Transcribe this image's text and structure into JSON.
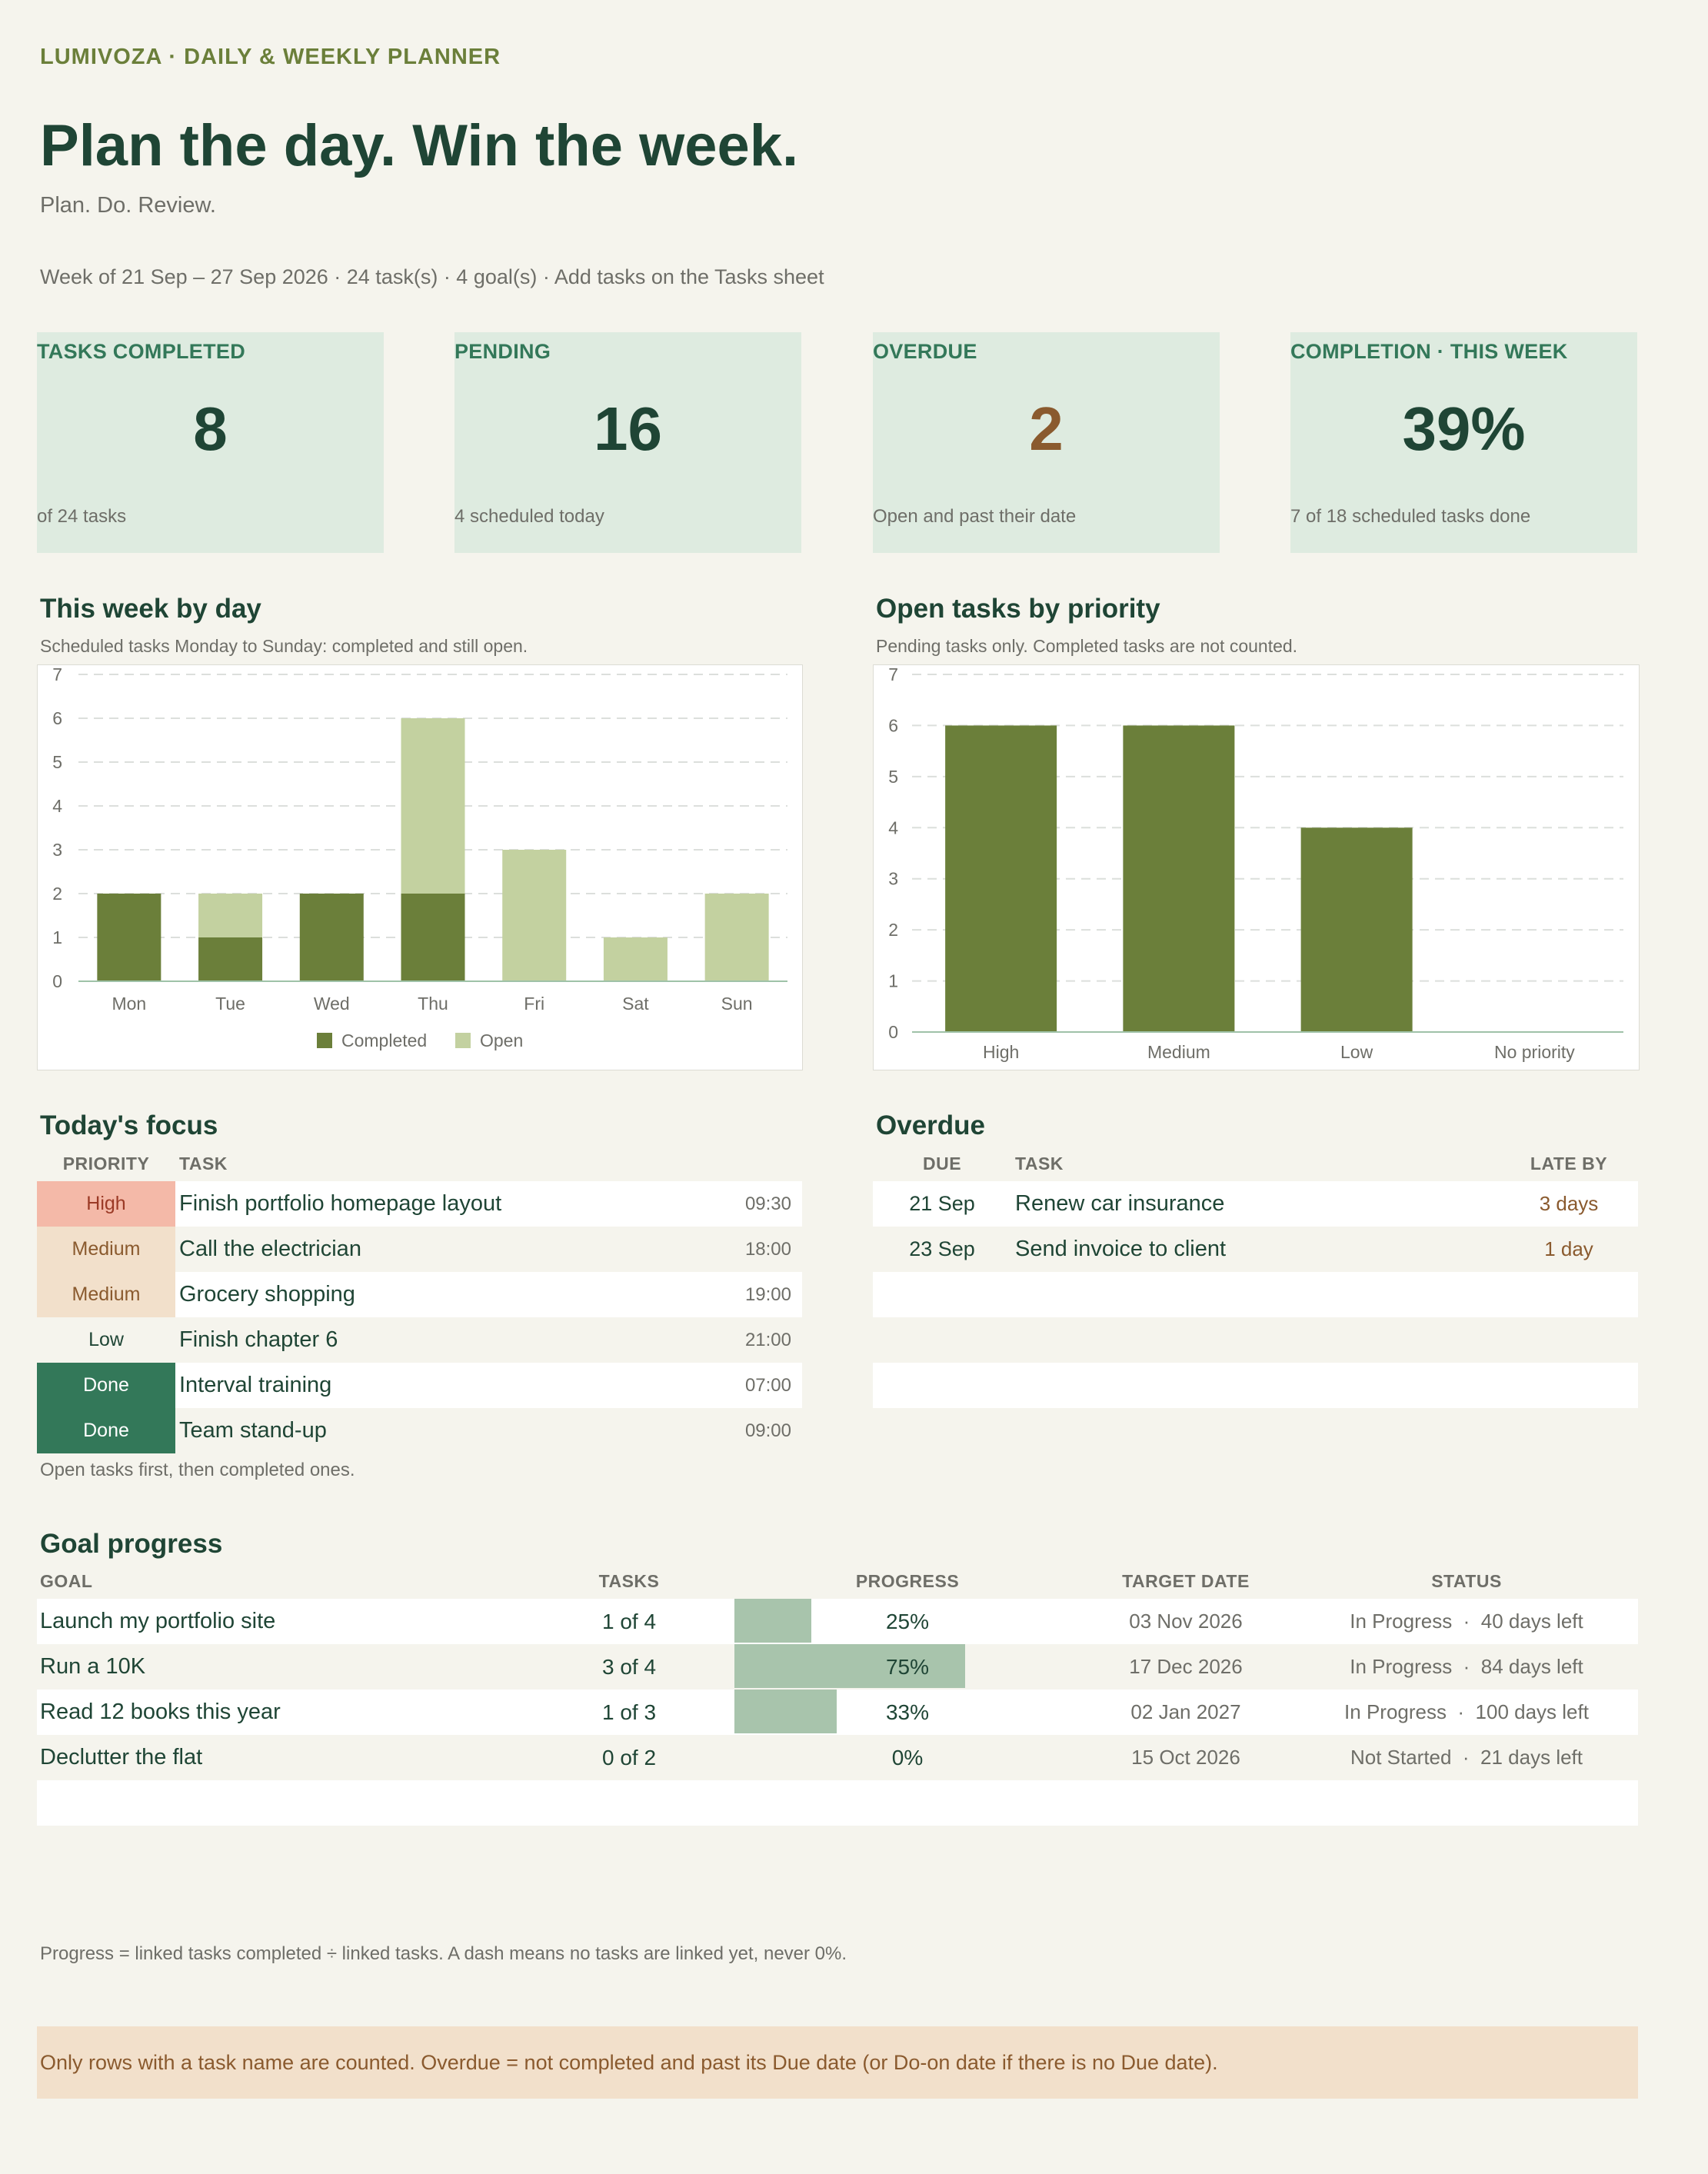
{
  "header": {
    "brand": "LUMIVOZA  ·  DAILY & WEEKLY PLANNER",
    "title": "Plan the day. Win the week.",
    "subtitle": "Plan. Do. Review.",
    "meta": "Week of 21 Sep – 27 Sep 2026  ·  24 task(s)  ·  4 goal(s)  ·  Add tasks on the Tasks sheet"
  },
  "kpis": [
    {
      "label": "TASKS COMPLETED",
      "value": "8",
      "note": "of 24 tasks",
      "color": "#1f4535"
    },
    {
      "label": "PENDING",
      "value": "16",
      "note": "4 scheduled today",
      "color": "#1f4535"
    },
    {
      "label": "OVERDUE",
      "value": "2",
      "note": "Open and past their date",
      "color": "#8a5a2e"
    },
    {
      "label": "COMPLETION · THIS WEEK",
      "value": "39%",
      "note": "7 of 18 scheduled tasks done",
      "color": "#1f4535"
    }
  ],
  "week_chart": {
    "title": "This week by day",
    "subtitle": "Scheduled tasks Monday to Sunday: completed and still open."
  },
  "priority_chart": {
    "title": "Open tasks by priority",
    "subtitle": "Pending tasks only. Completed tasks are not counted."
  },
  "chart_data": [
    {
      "type": "bar",
      "stacked": true,
      "categories": [
        "Mon",
        "Tue",
        "Wed",
        "Thu",
        "Fri",
        "Sat",
        "Sun"
      ],
      "series": [
        {
          "name": "Completed",
          "values": [
            2,
            1,
            2,
            2,
            0,
            0,
            0
          ],
          "color": "#6b7f3a"
        },
        {
          "name": "Open",
          "values": [
            0,
            1,
            0,
            4,
            3,
            1,
            2
          ],
          "color": "#c3d1a0"
        }
      ],
      "ylim": [
        0,
        7
      ],
      "yticks": [
        "0",
        "1",
        "2",
        "3",
        "4",
        "5",
        "6",
        "7"
      ],
      "grid": true,
      "legend": "bottom"
    },
    {
      "type": "bar",
      "categories": [
        "High",
        "Medium",
        "Low",
        "No priority"
      ],
      "values": [
        6,
        6,
        4,
        0
      ],
      "color": "#6b7f3a",
      "ylim": [
        0,
        7
      ],
      "yticks": [
        "0",
        "1",
        "2",
        "3",
        "4",
        "5",
        "6",
        "7"
      ],
      "grid": true
    }
  ],
  "focus": {
    "title": "Today's focus",
    "col_priority": "PRIORITY",
    "col_task": "TASK",
    "rows": [
      {
        "priority": "High",
        "task": "Finish portfolio homepage layout",
        "time": "09:30",
        "bg": "#f4b9a8",
        "fg": "#9b3a26"
      },
      {
        "priority": "Medium",
        "task": "Call the electrician",
        "time": "18:00",
        "bg": "#f2e0cb",
        "fg": "#8a5a2e"
      },
      {
        "priority": "Medium",
        "task": "Grocery shopping",
        "time": "19:00",
        "bg": "#f2e0cb",
        "fg": "#8a5a2e"
      },
      {
        "priority": "Low",
        "task": "Finish chapter 6",
        "time": "21:00",
        "bg": "transparent",
        "fg": "#1f4535"
      },
      {
        "priority": "Done",
        "task": "Interval training",
        "time": "07:00",
        "bg": "#337859",
        "fg": "#ffffff"
      },
      {
        "priority": "Done",
        "task": "Team stand-up",
        "time": "09:00",
        "bg": "#337859",
        "fg": "#ffffff"
      }
    ],
    "note": "Open tasks first, then completed ones."
  },
  "overdue": {
    "title": "Overdue",
    "col_due": "DUE",
    "col_task": "TASK",
    "col_late": "LATE BY",
    "rows": [
      {
        "due": "21 Sep",
        "task": "Renew car insurance",
        "late": "3 days"
      },
      {
        "due": "23 Sep",
        "task": "Send invoice to client",
        "late": "1 day"
      }
    ]
  },
  "goals": {
    "title": "Goal progress",
    "col_goal": "GOAL",
    "col_tasks": "TASKS",
    "col_progress": "PROGRESS",
    "col_target": "TARGET DATE",
    "col_status": "STATUS",
    "rows": [
      {
        "goal": "Launch my portfolio site",
        "tasks": "1 of 4",
        "progress": 0.25,
        "progress_label": "25%",
        "target": "03 Nov 2026",
        "status": "In Progress  ·  40 days left"
      },
      {
        "goal": "Run a 10K",
        "tasks": "3 of 4",
        "progress": 0.75,
        "progress_label": "75%",
        "target": "17 Dec 2026",
        "status": "In Progress  ·  84 days left"
      },
      {
        "goal": "Read 12 books this year",
        "tasks": "1 of 3",
        "progress": 0.333,
        "progress_label": "33%",
        "target": "02 Jan 2027",
        "status": "In Progress  ·  100 days left"
      },
      {
        "goal": "Declutter the flat",
        "tasks": "0 of 2",
        "progress": 0,
        "progress_label": "0%",
        "target": "15 Oct 2026",
        "status": "Not Started  ·  21 days left"
      }
    ],
    "note": "Progress = linked tasks completed ÷ linked tasks. A dash means no tasks are linked yet, never 0%."
  },
  "footer": {
    "banner": "Only rows with a task name are counted. Overdue = not completed and past its Due date (or Do-on date if there is no Due date)."
  }
}
